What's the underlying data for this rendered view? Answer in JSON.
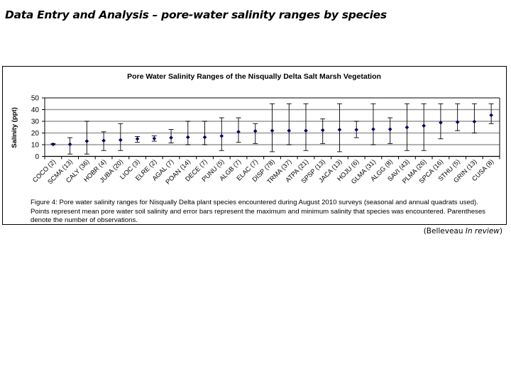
{
  "slide": {
    "title": "Data Entry and Analysis – pore-water salinity ranges by species"
  },
  "caption": "Figure 4: Pore water salinity ranges for Nisqually Delta plant species encountered during August 2010 surveys (seasonal and annual quadrats used). Points represent mean pore water soil salinity and error bars represent the maximum and minimum salinity that species was encountered. Parentheses denote the number of observations.",
  "citation": {
    "author": "(Belleveau ",
    "status": "In review",
    "close": ")"
  },
  "colors": {
    "marker": "#000066",
    "errorbar": "#000000",
    "gridline": "#999999",
    "axis": "#000000"
  },
  "chart_data": {
    "type": "scatter",
    "subtype": "mean-with-min-max-error-bars",
    "title": "Pore Water Salinity Ranges of the Nisqually Delta Salt Marsh Vegetation",
    "xlabel": "",
    "ylabel": "Salinity (ppt)",
    "ylim": [
      0,
      50
    ],
    "yticks": [
      0,
      10,
      20,
      30,
      40,
      50
    ],
    "grid": "horizontal",
    "legend": "none",
    "categories": [
      "COCO (2)",
      "SCMA (13)",
      "CALY (36)",
      "HOBR (4)",
      "JUBA (20)",
      "LIOC (3)",
      "ELRE (2)",
      "AGAL (7)",
      "POAN (14)",
      "DECE (7)",
      "PUNU (5)",
      "ALGB (7)",
      "ELAC (7)",
      "DISP (78)",
      "TRMA (37)",
      "ATPA (21)",
      "SPSP (13)",
      "JACA (13)",
      "HOJU (6)",
      "GLMA (31)",
      "ALGG (8)",
      "SAVI (43)",
      "PLMA (26)",
      "SPCA (16)",
      "STHU (5)",
      "GRIN (13)",
      "CUSA (8)"
    ],
    "series": [
      {
        "name": "Mean salinity",
        "values": [
          10.3,
          10.3,
          13.0,
          13.5,
          14.0,
          15.0,
          15.3,
          16.0,
          16.4,
          16.4,
          17.4,
          21.0,
          21.6,
          22.0,
          22.0,
          22.0,
          22.4,
          22.8,
          22.8,
          23.2,
          23.2,
          24.8,
          26.2,
          28.9,
          29.3,
          29.7,
          35.2
        ]
      },
      {
        "name": "Minimum salinity",
        "values": [
          10.0,
          2.0,
          2.0,
          5.0,
          5.0,
          12.0,
          13.0,
          11.5,
          10.0,
          10.0,
          5.0,
          12.0,
          11.0,
          4.0,
          10.0,
          5.0,
          11.0,
          4.0,
          16.0,
          10.0,
          11.0,
          5.0,
          5.0,
          15.0,
          22.0,
          20.0,
          28.0
        ]
      },
      {
        "name": "Maximum salinity",
        "values": [
          11.0,
          16.0,
          30.0,
          21.0,
          28.0,
          17.0,
          17.5,
          23.0,
          30.0,
          30.0,
          33.0,
          33.0,
          28.0,
          45.0,
          45.0,
          45.0,
          32.0,
          45.0,
          30.0,
          45.0,
          33.0,
          45.0,
          45.0,
          45.0,
          45.0,
          45.0,
          45.0
        ]
      }
    ]
  }
}
